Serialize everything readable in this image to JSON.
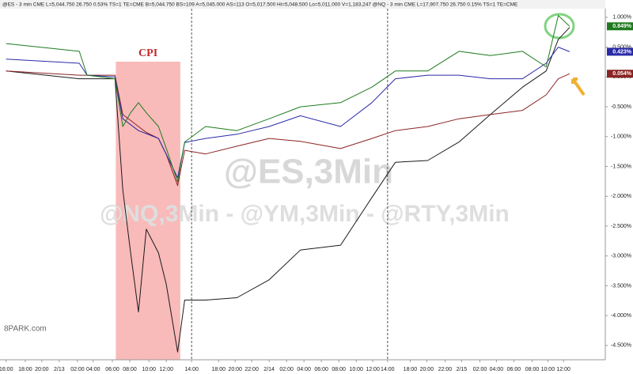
{
  "chart_data": {
    "type": "line",
    "header": "@ES - 3 min  CME  L=5,044.750  26.750  0.53%  TS=1  TE=CME  B=5,044.750  BS=109  A=5,045.000  AS=113  O=5,017.500  Hi=5,048.500  Lo=5,011.000  V=1,183,247    @NQ - 3 min  CME  L=17,907.750  26.750  0.15%  TS=1  TE=CME",
    "watermark": "@ES,3Min",
    "subtitle": "@NQ,3Min - @YM,3Min - @RTY,3Min",
    "source": "8PARK.com",
    "annotation": {
      "text": "CPI",
      "x": [
        12.6,
        20
      ]
    },
    "x": [
      0,
      8.4,
      9.3,
      12.5,
      13.4,
      14.3,
      15.2,
      16.1,
      17.5,
      18.4,
      19.7,
      20.5,
      22.9,
      26.5,
      30.2,
      33.8,
      38.4,
      42,
      44.7,
      48.4,
      52,
      55.6,
      59.3,
      62,
      63.4,
      64.7
    ],
    "series": [
      {
        "color": "#1a1a1a",
        "values": [
          0.1,
          -0.03,
          -0.03,
          -0.03,
          -1.89,
          -2.95,
          -3.94,
          -2.55,
          -2.95,
          -3.48,
          -4.61,
          -3.74,
          -3.74,
          -3.7,
          -3.4,
          -2.9,
          -2.82,
          -2.02,
          -1.43,
          -1.4,
          -1.09,
          -0.63,
          -0.17,
          0.1,
          0.63,
          0.83
        ]
      },
      {
        "color": "#8b2323",
        "values": [
          0.1,
          0.03,
          0.03,
          0.03,
          -0.63,
          -0.73,
          -0.83,
          -0.93,
          -1.03,
          -1.3,
          -1.82,
          -1.23,
          -1.29,
          -1.16,
          -1.03,
          -1.08,
          -1.2,
          -1.03,
          -0.9,
          -0.83,
          -0.7,
          -0.63,
          -0.56,
          -0.3,
          -0.03,
          0.054
        ],
        "value_labels": [
          null,
          null,
          null,
          null,
          null,
          null,
          null,
          null,
          null,
          null,
          null,
          null,
          null,
          null,
          null,
          null,
          null,
          null,
          null,
          null,
          null,
          null,
          null,
          null,
          null,
          "0.054%"
        ]
      },
      {
        "color": "#2a2aa8",
        "values": [
          0.3,
          0.23,
          0.03,
          0,
          -0.7,
          -0.8,
          -0.9,
          -0.95,
          -1.03,
          -1.3,
          -1.69,
          -1.1,
          -1.03,
          -0.96,
          -0.83,
          -0.65,
          -0.83,
          -0.43,
          -0.03,
          0.03,
          0.03,
          -0.03,
          -0.03,
          0.23,
          0.5,
          0.423
        ],
        "value_labels": [
          null,
          null,
          null,
          null,
          null,
          null,
          null,
          null,
          null,
          null,
          null,
          null,
          null,
          null,
          null,
          null,
          null,
          null,
          null,
          null,
          null,
          null,
          null,
          null,
          null,
          "0.423%"
        ]
      },
      {
        "color": "#1e7a1e",
        "values": [
          0.56,
          0.43,
          0.03,
          -0.03,
          -0.83,
          -0.6,
          -0.43,
          -0.6,
          -0.83,
          -1.2,
          -1.76,
          -1.09,
          -0.83,
          -0.9,
          -0.7,
          -0.5,
          -0.43,
          -0.17,
          0.1,
          0.1,
          0.43,
          0.36,
          0.43,
          0.17,
          1.03,
          0.849
        ],
        "value_labels": [
          null,
          null,
          null,
          null,
          null,
          null,
          null,
          null,
          null,
          null,
          null,
          null,
          null,
          null,
          null,
          null,
          null,
          null,
          null,
          null,
          null,
          null,
          null,
          null,
          null,
          "0.849%"
        ]
      }
    ],
    "xlim": [
      -0.7,
      68.8
    ],
    "ylim": [
      -4.74,
      1.29
    ],
    "xticks": [
      {
        "value": 0,
        "label": "16:00"
      },
      {
        "value": 2.2,
        "label": "18:00"
      },
      {
        "value": 4.1,
        "label": "20:00"
      },
      {
        "value": 6.1,
        "label": "2/13"
      },
      {
        "value": 8.2,
        "label": "02:00"
      },
      {
        "value": 10,
        "label": "04:00"
      },
      {
        "value": 12.2,
        "label": "06:00"
      },
      {
        "value": 14.2,
        "label": "08:00"
      },
      {
        "value": 16.4,
        "label": "10:00"
      },
      {
        "value": 18.4,
        "label": "12:00"
      },
      {
        "value": 21.3,
        "label": "14:00"
      },
      {
        "value": 24.4,
        "label": "18:00"
      },
      {
        "value": 26.3,
        "label": "20:00"
      },
      {
        "value": 28.2,
        "label": "22:00"
      },
      {
        "value": 30.2,
        "label": "2/14"
      },
      {
        "value": 32.2,
        "label": "02:00"
      },
      {
        "value": 34.2,
        "label": "04:00"
      },
      {
        "value": 36.2,
        "label": "06:00"
      },
      {
        "value": 38.2,
        "label": "08:00"
      },
      {
        "value": 40.2,
        "label": "10:00"
      },
      {
        "value": 42.1,
        "label": "12:00"
      },
      {
        "value": 43.8,
        "label": "14:00"
      },
      {
        "value": 46.4,
        "label": "18:00"
      },
      {
        "value": 48.3,
        "label": "20:00"
      },
      {
        "value": 50.4,
        "label": "22:00"
      },
      {
        "value": 52.3,
        "label": "2/15"
      },
      {
        "value": 54.4,
        "label": "02:00"
      },
      {
        "value": 56.3,
        "label": "04:00"
      },
      {
        "value": 58.3,
        "label": "06:00"
      },
      {
        "value": 60.4,
        "label": "08:00"
      },
      {
        "value": 62.2,
        "label": "10:00"
      },
      {
        "value": 64,
        "label": "12:00"
      }
    ],
    "yticks": [
      {
        "value": 1,
        "label": "1.000%"
      },
      {
        "value": 0.5,
        "label": "0.500%"
      },
      {
        "value": 0,
        "label": "0.000%"
      },
      {
        "value": -0.5,
        "label": "-0.500%"
      },
      {
        "value": -1,
        "label": "-1.000%"
      },
      {
        "value": -1.5,
        "label": "-1.500%"
      },
      {
        "value": -2,
        "label": "-2.000%"
      },
      {
        "value": -2.5,
        "label": "-2.500%"
      },
      {
        "value": -3,
        "label": "-3.000%"
      },
      {
        "value": -3.5,
        "label": "-3.500%"
      },
      {
        "value": -4,
        "label": "-4.000%"
      },
      {
        "value": -4.5,
        "label": "-4.500%"
      }
    ]
  }
}
